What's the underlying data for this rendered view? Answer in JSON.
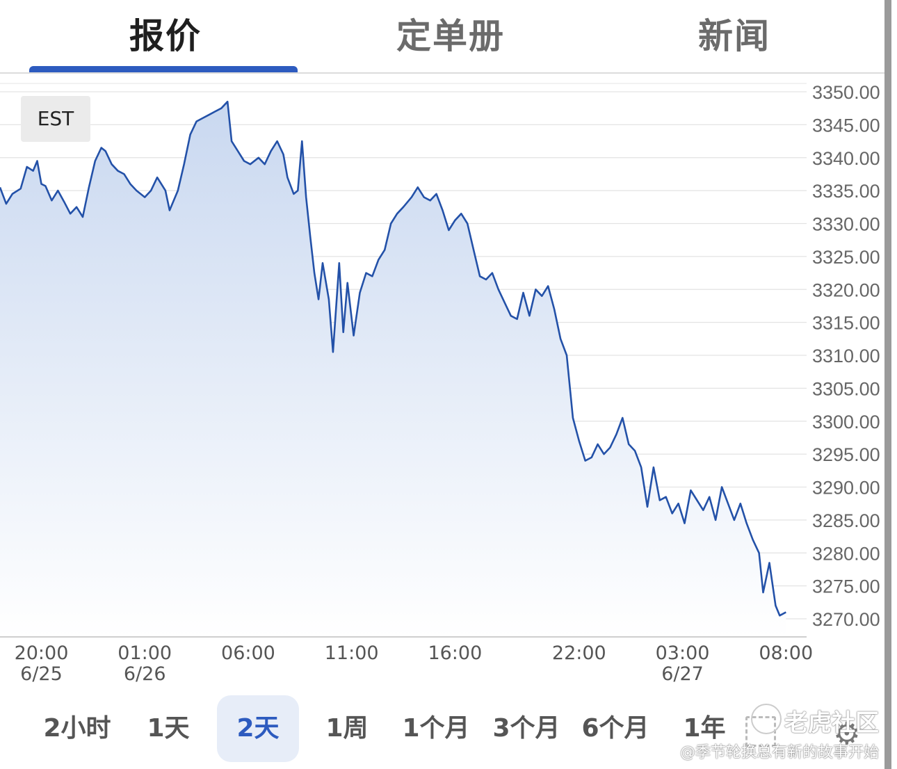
{
  "tabs": [
    {
      "label": "报价",
      "active": true
    },
    {
      "label": "定单册",
      "active": false
    },
    {
      "label": "新闻",
      "active": false
    }
  ],
  "timezone_badge": "EST",
  "ranges": [
    {
      "label": "2小时",
      "active": false
    },
    {
      "label": "1天",
      "active": false
    },
    {
      "label": "2天",
      "active": true
    },
    {
      "label": "1周",
      "active": false
    },
    {
      "label": "1个月",
      "active": false
    },
    {
      "label": "3个月",
      "active": false
    },
    {
      "label": "6个月",
      "active": false
    },
    {
      "label": "1年",
      "active": false
    }
  ],
  "icons": {
    "settings": "gear-icon",
    "fullscreen": "expand-icon"
  },
  "watermark": {
    "line1": "老虎社区",
    "line2": "@季节轮换总有新的故事开始"
  },
  "colors": {
    "line": "#2351a8",
    "accent": "#2d5bbf",
    "fill_top": "#c9d8f0",
    "fill_bottom": "#ffffff"
  },
  "chart_data": {
    "type": "area",
    "ylim": [
      3270,
      3350
    ],
    "y_ticks": [
      "3350.00",
      "3345.00",
      "3340.00",
      "3335.00",
      "3330.00",
      "3325.00",
      "3320.00",
      "3315.00",
      "3310.00",
      "3305.00",
      "3300.00",
      "3295.00",
      "3290.00",
      "3285.00",
      "3280.00",
      "3275.00",
      "3270.00"
    ],
    "x_ticks": [
      {
        "time": "20:00",
        "date": "6/25"
      },
      {
        "time": "01:00",
        "date": "6/26"
      },
      {
        "time": "06:00",
        "date": ""
      },
      {
        "time": "11:00",
        "date": ""
      },
      {
        "time": "16:00",
        "date": ""
      },
      {
        "time": "22:00",
        "date": ""
      },
      {
        "time": "03:00",
        "date": "6/27"
      },
      {
        "time": "08:00",
        "date": ""
      }
    ],
    "x_tick_hours": [
      2,
      7,
      12,
      17,
      22,
      28,
      33,
      38
    ],
    "x_range_hours": [
      0,
      39
    ],
    "points": [
      [
        0.0,
        3335.5
      ],
      [
        0.3,
        3333.0
      ],
      [
        0.6,
        3334.5
      ],
      [
        1.0,
        3335.3
      ],
      [
        1.3,
        3338.6
      ],
      [
        1.6,
        3338.0
      ],
      [
        1.8,
        3339.5
      ],
      [
        2.0,
        3336.0
      ],
      [
        2.2,
        3335.7
      ],
      [
        2.5,
        3333.5
      ],
      [
        2.8,
        3335.0
      ],
      [
        3.1,
        3333.3
      ],
      [
        3.4,
        3331.5
      ],
      [
        3.7,
        3332.5
      ],
      [
        4.0,
        3331.0
      ],
      [
        4.3,
        3335.5
      ],
      [
        4.6,
        3339.5
      ],
      [
        4.9,
        3341.5
      ],
      [
        5.1,
        3341.0
      ],
      [
        5.4,
        3339.0
      ],
      [
        5.7,
        3338.0
      ],
      [
        6.0,
        3337.5
      ],
      [
        6.3,
        3336.0
      ],
      [
        6.6,
        3335.0
      ],
      [
        7.0,
        3334.0
      ],
      [
        7.3,
        3335.0
      ],
      [
        7.6,
        3337.0
      ],
      [
        8.0,
        3335.0
      ],
      [
        8.2,
        3332.0
      ],
      [
        8.6,
        3335.0
      ],
      [
        8.9,
        3339.0
      ],
      [
        9.2,
        3343.5
      ],
      [
        9.5,
        3345.5
      ],
      [
        9.8,
        3346.0
      ],
      [
        10.1,
        3346.5
      ],
      [
        10.4,
        3347.0
      ],
      [
        10.7,
        3347.5
      ],
      [
        11.0,
        3348.5
      ],
      [
        11.2,
        3342.5
      ],
      [
        11.5,
        3341.0
      ],
      [
        11.8,
        3339.5
      ],
      [
        12.1,
        3339.0
      ],
      [
        12.5,
        3340.0
      ],
      [
        12.8,
        3339.0
      ],
      [
        13.1,
        3341.0
      ],
      [
        13.4,
        3342.5
      ],
      [
        13.7,
        3340.5
      ],
      [
        13.9,
        3337.0
      ],
      [
        14.2,
        3334.5
      ],
      [
        14.4,
        3335.0
      ],
      [
        14.6,
        3342.5
      ],
      [
        14.8,
        3334.0
      ],
      [
        15.0,
        3328.0
      ],
      [
        15.2,
        3322.5
      ],
      [
        15.4,
        3318.5
      ],
      [
        15.6,
        3324.0
      ],
      [
        15.9,
        3318.5
      ],
      [
        16.1,
        3310.5
      ],
      [
        16.4,
        3324.0
      ],
      [
        16.6,
        3313.5
      ],
      [
        16.8,
        3321.0
      ],
      [
        17.1,
        3313.0
      ],
      [
        17.4,
        3319.5
      ],
      [
        17.7,
        3322.5
      ],
      [
        18.0,
        3322.0
      ],
      [
        18.3,
        3324.5
      ],
      [
        18.6,
        3326.0
      ],
      [
        18.9,
        3330.0
      ],
      [
        19.2,
        3331.5
      ],
      [
        19.5,
        3332.5
      ],
      [
        19.9,
        3334.0
      ],
      [
        20.2,
        3335.5
      ],
      [
        20.5,
        3334.0
      ],
      [
        20.8,
        3333.5
      ],
      [
        21.1,
        3334.5
      ],
      [
        21.4,
        3332.0
      ],
      [
        21.7,
        3329.0
      ],
      [
        22.0,
        3330.5
      ],
      [
        22.3,
        3331.5
      ],
      [
        22.6,
        3330.0
      ],
      [
        22.9,
        3326.0
      ],
      [
        23.2,
        3322.0
      ],
      [
        23.5,
        3321.5
      ],
      [
        23.8,
        3322.5
      ],
      [
        24.1,
        3320.0
      ],
      [
        24.4,
        3318.0
      ],
      [
        24.7,
        3316.0
      ],
      [
        25.0,
        3315.5
      ],
      [
        25.3,
        3319.5
      ],
      [
        25.6,
        3316.0
      ],
      [
        25.9,
        3320.0
      ],
      [
        26.2,
        3319.0
      ],
      [
        26.5,
        3320.5
      ],
      [
        26.8,
        3317.0
      ],
      [
        27.1,
        3312.5
      ],
      [
        27.4,
        3310.0
      ],
      [
        27.7,
        3300.5
      ],
      [
        28.0,
        3297.0
      ],
      [
        28.3,
        3294.0
      ],
      [
        28.6,
        3294.5
      ],
      [
        28.9,
        3296.5
      ],
      [
        29.2,
        3295.0
      ],
      [
        29.5,
        3296.0
      ],
      [
        29.8,
        3298.0
      ],
      [
        30.1,
        3300.5
      ],
      [
        30.4,
        3296.5
      ],
      [
        30.7,
        3295.5
      ],
      [
        31.0,
        3293.0
      ],
      [
        31.3,
        3287.0
      ],
      [
        31.6,
        3293.0
      ],
      [
        31.9,
        3288.0
      ],
      [
        32.2,
        3288.5
      ],
      [
        32.5,
        3286.0
      ],
      [
        32.8,
        3287.5
      ],
      [
        33.1,
        3284.5
      ],
      [
        33.4,
        3289.5
      ],
      [
        33.7,
        3288.0
      ],
      [
        34.0,
        3286.5
      ],
      [
        34.3,
        3288.5
      ],
      [
        34.6,
        3285.0
      ],
      [
        34.9,
        3290.0
      ],
      [
        35.2,
        3287.5
      ],
      [
        35.5,
        3285.0
      ],
      [
        35.8,
        3287.5
      ],
      [
        36.1,
        3284.5
      ],
      [
        36.4,
        3282.0
      ],
      [
        36.7,
        3280.0
      ],
      [
        36.9,
        3274.0
      ],
      [
        37.2,
        3278.5
      ],
      [
        37.5,
        3272.0
      ],
      [
        37.7,
        3270.5
      ],
      [
        38.0,
        3271.0
      ]
    ]
  }
}
